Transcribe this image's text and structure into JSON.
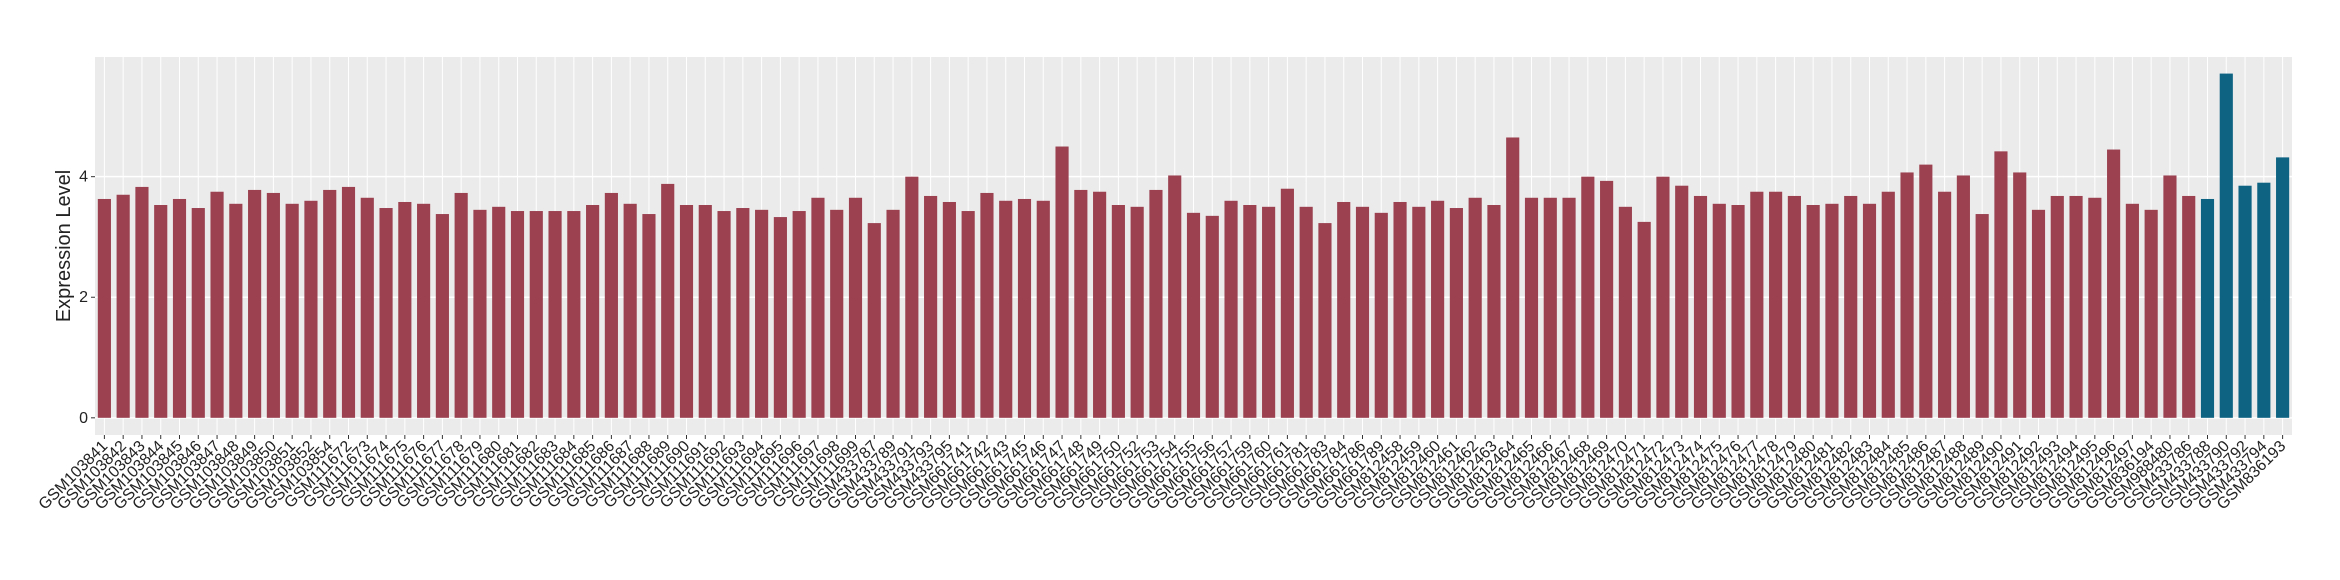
{
  "chart_data": {
    "type": "bar",
    "y_label": "Expression Level",
    "categories": [
      "GSM103841",
      "GSM103842",
      "GSM103843",
      "GSM103844",
      "GSM103845",
      "GSM103846",
      "GSM103847",
      "GSM103848",
      "GSM103849",
      "GSM103850",
      "GSM103851",
      "GSM103852",
      "GSM103854",
      "GSM111672",
      "GSM111673",
      "GSM111674",
      "GSM111675",
      "GSM111676",
      "GSM111677",
      "GSM111678",
      "GSM111679",
      "GSM111680",
      "GSM111681",
      "GSM111682",
      "GSM111683",
      "GSM111684",
      "GSM111685",
      "GSM111686",
      "GSM111687",
      "GSM111688",
      "GSM111689",
      "GSM111690",
      "GSM111691",
      "GSM111692",
      "GSM111693",
      "GSM111694",
      "GSM111695",
      "GSM111696",
      "GSM111697",
      "GSM111698",
      "GSM111699",
      "GSM433787",
      "GSM433789",
      "GSM433791",
      "GSM433793",
      "GSM433795",
      "GSM661741",
      "GSM661742",
      "GSM661743",
      "GSM661745",
      "GSM661746",
      "GSM661747",
      "GSM661748",
      "GSM661749",
      "GSM661750",
      "GSM661752",
      "GSM661753",
      "GSM661754",
      "GSM661755",
      "GSM661756",
      "GSM661757",
      "GSM661759",
      "GSM661760",
      "GSM661761",
      "GSM661781",
      "GSM661783",
      "GSM661784",
      "GSM661786",
      "GSM661789",
      "GSM812458",
      "GSM812459",
      "GSM812460",
      "GSM812461",
      "GSM812462",
      "GSM812463",
      "GSM812464",
      "GSM812465",
      "GSM812466",
      "GSM812467",
      "GSM812468",
      "GSM812469",
      "GSM812470",
      "GSM812471",
      "GSM812472",
      "GSM812473",
      "GSM812474",
      "GSM812475",
      "GSM812476",
      "GSM812477",
      "GSM812478",
      "GSM812479",
      "GSM812480",
      "GSM812481",
      "GSM812482",
      "GSM812483",
      "GSM812484",
      "GSM812485",
      "GSM812486",
      "GSM812487",
      "GSM812488",
      "GSM812489",
      "GSM812490",
      "GSM812491",
      "GSM812492",
      "GSM812493",
      "GSM812494",
      "GSM812495",
      "GSM812496",
      "GSM812497",
      "GSM836194",
      "GSM988480",
      "GSM433786",
      "GSM433788",
      "GSM433790",
      "GSM433792",
      "GSM433794",
      "GSM836193"
    ],
    "values": [
      3.63,
      3.7,
      3.83,
      3.53,
      3.63,
      3.48,
      3.75,
      3.55,
      3.78,
      3.73,
      3.55,
      3.6,
      3.78,
      3.83,
      3.65,
      3.48,
      3.58,
      3.55,
      3.38,
      3.73,
      3.45,
      3.5,
      3.43,
      3.43,
      3.43,
      3.43,
      3.53,
      3.73,
      3.55,
      3.38,
      3.88,
      3.53,
      3.53,
      3.43,
      3.48,
      3.45,
      3.33,
      3.43,
      3.65,
      3.45,
      3.65,
      3.23,
      3.45,
      4.0,
      3.68,
      3.58,
      3.43,
      3.73,
      3.6,
      3.63,
      3.6,
      4.5,
      3.78,
      3.75,
      3.53,
      3.5,
      3.78,
      4.02,
      3.4,
      3.35,
      3.6,
      3.53,
      3.5,
      3.8,
      3.5,
      3.23,
      3.58,
      3.5,
      3.4,
      3.58,
      3.5,
      3.6,
      3.48,
      3.65,
      3.53,
      4.65,
      3.65,
      3.65,
      3.65,
      4.0,
      3.93,
      3.5,
      3.25,
      4.0,
      3.85,
      3.68,
      3.55,
      3.53,
      3.75,
      3.75,
      3.68,
      3.53,
      3.55,
      3.68,
      3.55,
      3.75,
      4.07,
      4.2,
      3.75,
      4.02,
      3.38,
      4.42,
      4.07,
      3.45,
      3.68,
      3.68,
      3.65,
      4.45,
      3.55,
      3.45,
      4.02,
      3.68,
      3.63,
      5.71,
      3.85,
      3.9,
      4.32
    ],
    "colors": [
      "#9b4150",
      "#9b4150",
      "#9b4150",
      "#9b4150",
      "#9b4150",
      "#9b4150",
      "#9b4150",
      "#9b4150",
      "#9b4150",
      "#9b4150",
      "#9b4150",
      "#9b4150",
      "#9b4150",
      "#9b4150",
      "#9b4150",
      "#9b4150",
      "#9b4150",
      "#9b4150",
      "#9b4150",
      "#9b4150",
      "#9b4150",
      "#9b4150",
      "#9b4150",
      "#9b4150",
      "#9b4150",
      "#9b4150",
      "#9b4150",
      "#9b4150",
      "#9b4150",
      "#9b4150",
      "#9b4150",
      "#9b4150",
      "#9b4150",
      "#9b4150",
      "#9b4150",
      "#9b4150",
      "#9b4150",
      "#9b4150",
      "#9b4150",
      "#9b4150",
      "#9b4150",
      "#9b4150",
      "#9b4150",
      "#9b4150",
      "#9b4150",
      "#9b4150",
      "#9b4150",
      "#9b4150",
      "#9b4150",
      "#9b4150",
      "#9b4150",
      "#9b4150",
      "#9b4150",
      "#9b4150",
      "#9b4150",
      "#9b4150",
      "#9b4150",
      "#9b4150",
      "#9b4150",
      "#9b4150",
      "#9b4150",
      "#9b4150",
      "#9b4150",
      "#9b4150",
      "#9b4150",
      "#9b4150",
      "#9b4150",
      "#9b4150",
      "#9b4150",
      "#9b4150",
      "#9b4150",
      "#9b4150",
      "#9b4150",
      "#9b4150",
      "#9b4150",
      "#9b4150",
      "#9b4150",
      "#9b4150",
      "#9b4150",
      "#9b4150",
      "#9b4150",
      "#9b4150",
      "#9b4150",
      "#9b4150",
      "#9b4150",
      "#9b4150",
      "#9b4150",
      "#9b4150",
      "#9b4150",
      "#9b4150",
      "#9b4150",
      "#9b4150",
      "#9b4150",
      "#9b4150",
      "#9b4150",
      "#9b4150",
      "#9b4150",
      "#9b4150",
      "#9b4150",
      "#9b4150",
      "#9b4150",
      "#9b4150",
      "#9b4150",
      "#9b4150",
      "#9b4150",
      "#9b4150",
      "#9b4150",
      "#9b4150",
      "#9b4150",
      "#9b4150",
      "#9b4150",
      "#9b4150",
      "#0e6383",
      "#0e6383",
      "#0e6383",
      "#0e6383",
      "#0e6383"
    ],
    "ylim": [
      -0.285,
      5.985
    ],
    "yticks": [
      0,
      2,
      4
    ],
    "grid": true
  }
}
